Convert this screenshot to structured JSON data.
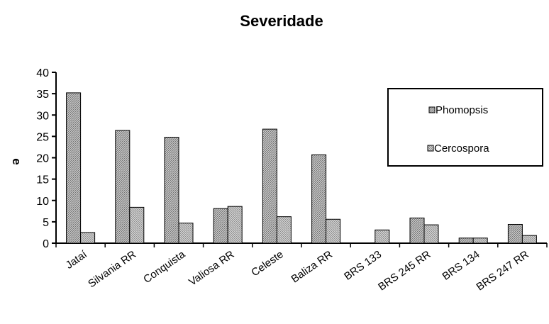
{
  "chart_data": {
    "type": "bar",
    "title": "Severidade",
    "ylabel": "e",
    "xlabel": "",
    "ylim": [
      0,
      40
    ],
    "yticks": [
      0,
      5,
      10,
      15,
      20,
      25,
      30,
      35,
      40
    ],
    "grid": false,
    "legend_position": "top-right",
    "categories": [
      "Jataí",
      "Silvania RR",
      "Conquista",
      "Valiosa RR",
      "Celeste",
      "Baliza RR",
      "BRS 133",
      "BRS 245 RR",
      "BRS 134",
      "BRS 247 RR"
    ],
    "series": [
      {
        "name": "Phomopsis",
        "values": [
          35.2,
          26.4,
          24.8,
          8.1,
          26.7,
          20.7,
          0,
          5.9,
          1.2,
          4.4
        ],
        "color": "#9a9a9a"
      },
      {
        "name": "Cercospora",
        "values": [
          2.5,
          8.4,
          4.7,
          8.6,
          6.2,
          5.6,
          3.1,
          4.3,
          1.2,
          1.8
        ],
        "color": "#b4b4b4"
      }
    ]
  }
}
